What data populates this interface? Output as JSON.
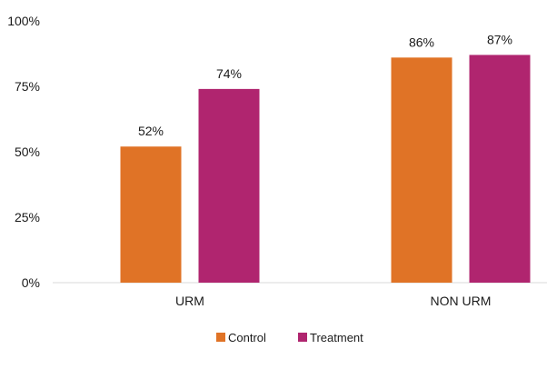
{
  "chart_data": {
    "type": "bar",
    "categories": [
      "URM",
      "NON URM"
    ],
    "series": [
      {
        "name": "Control",
        "values": [
          52,
          86
        ],
        "labels": [
          "52%",
          "86%"
        ],
        "color": "#e07326"
      },
      {
        "name": "Treatment",
        "values": [
          74,
          87
        ],
        "labels": [
          "74%",
          "87%"
        ],
        "color": "#b0256f"
      }
    ],
    "ylim": [
      0,
      100
    ],
    "yticks": [
      0,
      25,
      50,
      75,
      100
    ],
    "ytick_labels": [
      "0%",
      "25%",
      "50%",
      "75%",
      "100%"
    ],
    "grid": false,
    "legend_position": "bottom",
    "title": "",
    "xlabel": "",
    "ylabel": ""
  }
}
